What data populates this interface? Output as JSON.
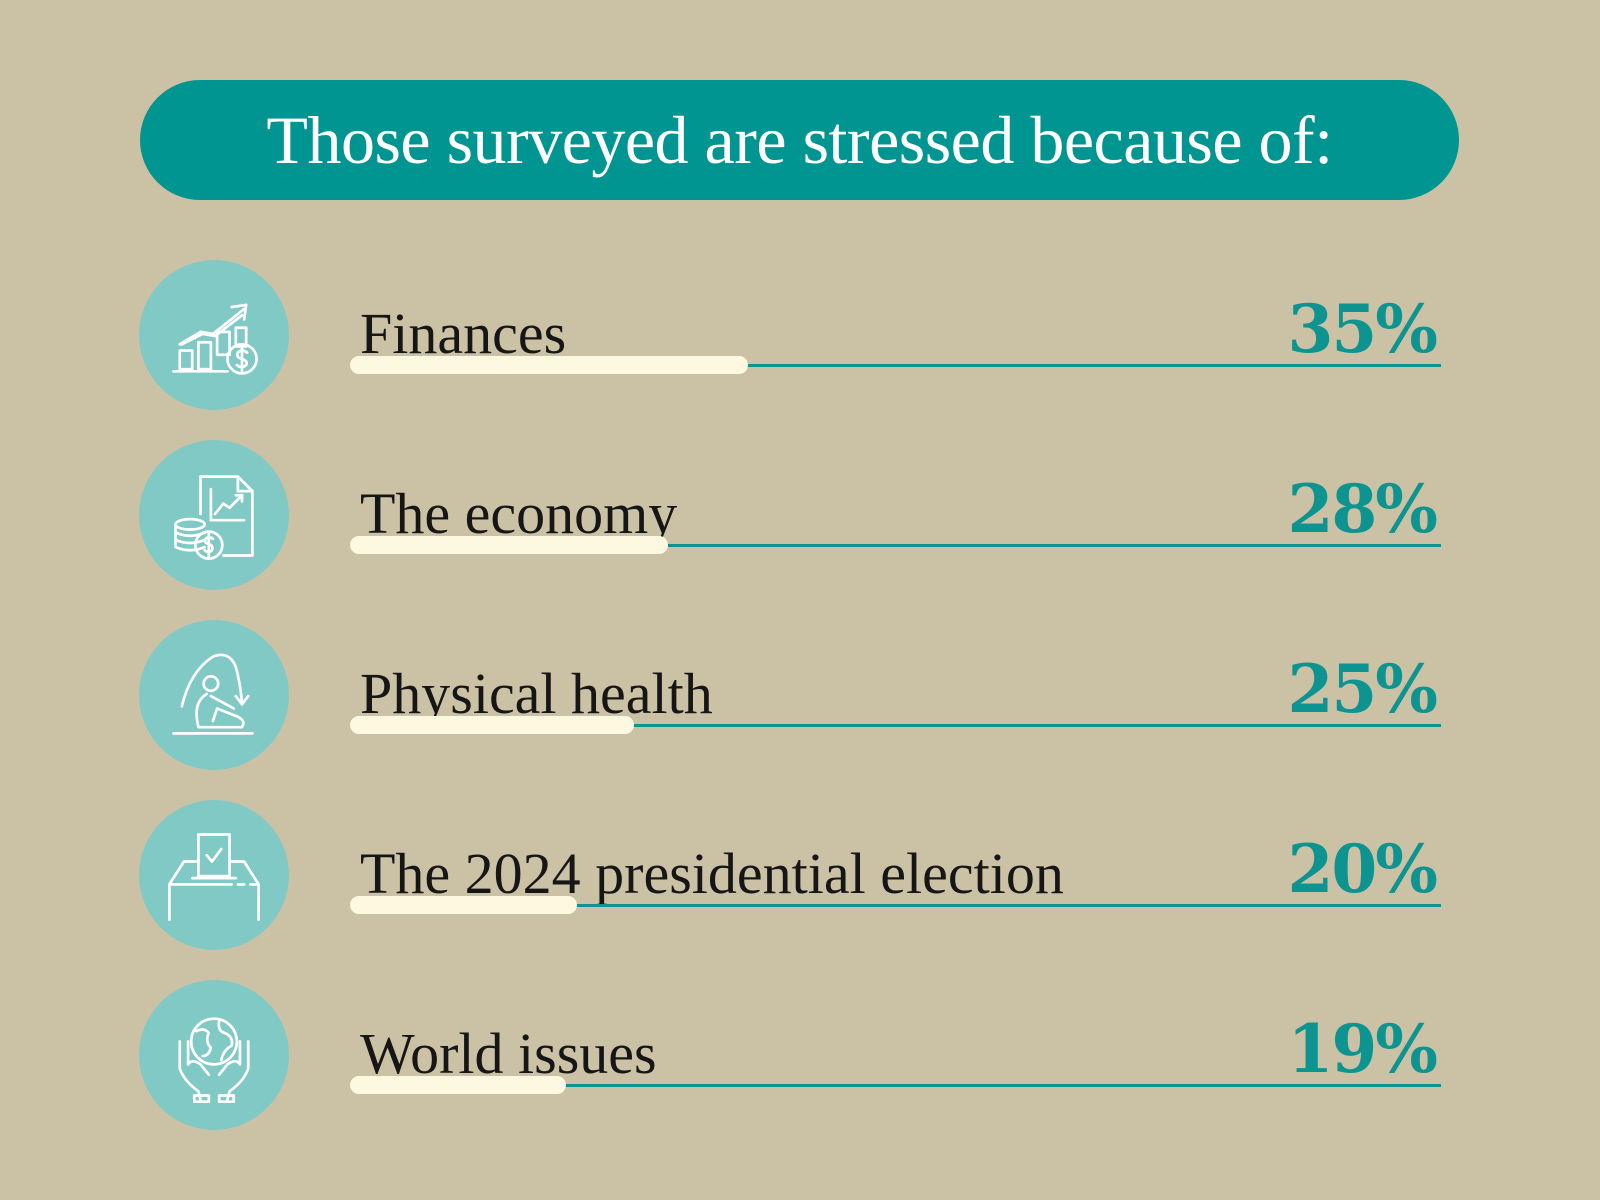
{
  "colors": {
    "background": "#cbc2a5",
    "accent": "#009590",
    "icon_circle": "#80c9c5",
    "bar_fill": "#fdf9e1",
    "percent_text": "#0e9490"
  },
  "header": {
    "title": "Those surveyed are stressed because of:"
  },
  "chart_data": {
    "type": "bar",
    "orientation": "horizontal",
    "title": "Those surveyed are stressed because of:",
    "categories": [
      "Finances",
      "The economy",
      "Physical health",
      "The 2024 presidential election",
      "World issues"
    ],
    "values": [
      35,
      28,
      25,
      20,
      19
    ],
    "labels": [
      "35%",
      "28%",
      "25%",
      "20%",
      "19%"
    ],
    "icons": [
      "finance-chart-dollar-icon",
      "economy-report-coins-icon",
      "physical-health-person-icon",
      "ballot-box-icon",
      "globe-hands-icon"
    ],
    "unit": "%"
  }
}
